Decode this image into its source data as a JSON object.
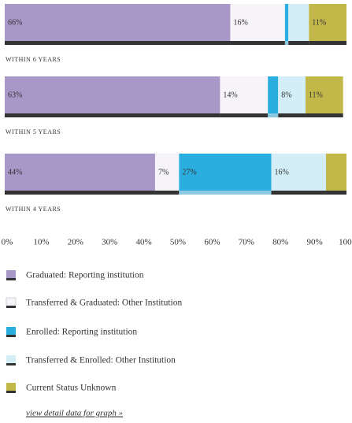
{
  "chart_data": {
    "type": "bar",
    "orientation": "horizontal",
    "stacked": true,
    "categories": [
      "WITHIN 6 YEARS",
      "WITHIN 5 YEARS",
      "WITHIN 4 YEARS"
    ],
    "series": [
      {
        "name": "Graduated: Reporting institution",
        "color": "#a898c8",
        "values": [
          66,
          63,
          44
        ],
        "value_labels": [
          "66%",
          "63%",
          "44%"
        ]
      },
      {
        "name": "Transferred & Graduated: Other Institution",
        "color": "#f6f4f8",
        "values": [
          16,
          14,
          7
        ],
        "value_labels": [
          "16%",
          "14%",
          "7%"
        ]
      },
      {
        "name": "Enrolled: Reporting institution",
        "color": "#2aaee0",
        "values": [
          1,
          3,
          27
        ],
        "value_labels": [
          null,
          null,
          "27%"
        ]
      },
      {
        "name": "Transferred & Enrolled: Other Institution",
        "color": "#d4eef8",
        "values": [
          6,
          8,
          16
        ],
        "value_labels": [
          null,
          "8%",
          "16%"
        ]
      },
      {
        "name": "Current Status Unknown",
        "color": "#c2b84a",
        "values": [
          11,
          11,
          6
        ],
        "value_labels": [
          "11%",
          "11%",
          null
        ]
      }
    ],
    "xlim": [
      0,
      100
    ],
    "xticks": [
      {
        "value": 0,
        "label": "0%"
      },
      {
        "value": 10,
        "label": "10%"
      },
      {
        "value": 20,
        "label": "20%"
      },
      {
        "value": 30,
        "label": "30%"
      },
      {
        "value": 40,
        "label": "40%"
      },
      {
        "value": 50,
        "label": "50%"
      },
      {
        "value": 60,
        "label": "60%"
      },
      {
        "value": 70,
        "label": "70%"
      },
      {
        "value": 80,
        "label": "80%"
      },
      {
        "value": 90,
        "label": "90%"
      },
      {
        "value": 100,
        "label": "100%"
      }
    ],
    "link": "view detail data for graph »"
  }
}
